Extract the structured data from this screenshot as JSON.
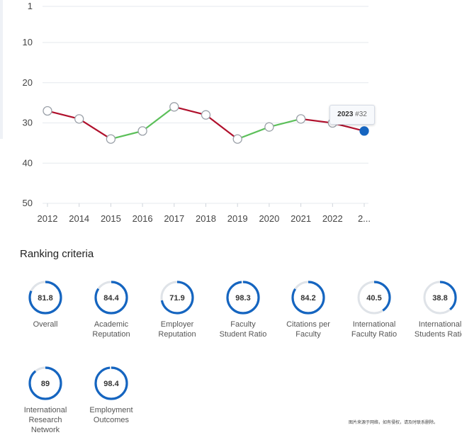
{
  "chart_data": {
    "type": "line",
    "title": "",
    "xlabel": "",
    "ylabel": "",
    "y_inverted": true,
    "ylim": [
      1,
      50
    ],
    "yticks": [
      "1",
      "10",
      "20",
      "30",
      "40",
      "50"
    ],
    "categories": [
      "2012",
      "2014",
      "2015",
      "2016",
      "2017",
      "2018",
      "2019",
      "2020",
      "2021",
      "2022",
      "2..."
    ],
    "series": [
      {
        "values": [
          27,
          29,
          34,
          32,
          26,
          28,
          34,
          31,
          29,
          30,
          32
        ]
      }
    ],
    "colors": {
      "worse": "#b0102c",
      "better": "#5cc05a",
      "highlight": "#1565c0",
      "grid": "#e6e9ee"
    },
    "highlight": {
      "year": "2023",
      "rank_label": "#32"
    }
  },
  "section": {
    "title": "Ranking criteria"
  },
  "criteria": [
    {
      "score": "81.8",
      "value": 81.8,
      "label_lines": [
        "Overall"
      ]
    },
    {
      "score": "84.4",
      "value": 84.4,
      "label_lines": [
        "Academic",
        "Reputation"
      ]
    },
    {
      "score": "71.9",
      "value": 71.9,
      "label_lines": [
        "Employer",
        "Reputation"
      ]
    },
    {
      "score": "98.3",
      "value": 98.3,
      "label_lines": [
        "Faculty",
        "Student Ratio"
      ]
    },
    {
      "score": "84.2",
      "value": 84.2,
      "label_lines": [
        "Citations per",
        "Faculty"
      ]
    },
    {
      "score": "40.5",
      "value": 40.5,
      "label_lines": [
        "International",
        "Faculty Ratio"
      ]
    },
    {
      "score": "38.8",
      "value": 38.8,
      "label_lines": [
        "International",
        "Students Ratio"
      ]
    },
    {
      "score": "89",
      "value": 89,
      "label_lines": [
        "International",
        "Research",
        "Network"
      ]
    },
    {
      "score": "98.4",
      "value": 98.4,
      "label_lines": [
        "Employment",
        "Outcomes"
      ]
    }
  ],
  "watermark": "图片来源于网络，如有侵权，请及时联系删除。"
}
